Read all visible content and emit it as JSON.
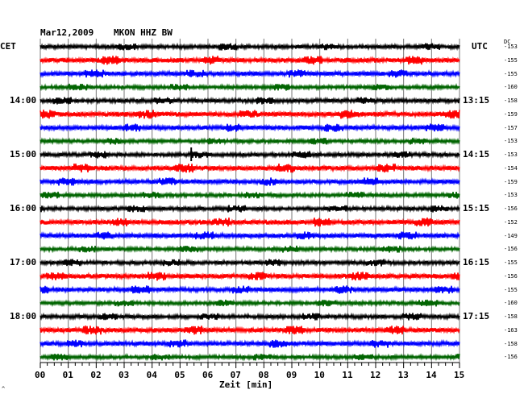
{
  "header": {
    "date": "Mar12,2009",
    "station": "MKON HHZ BW",
    "left_zone": "CET",
    "right_zone": "UTC",
    "dc_label": "DC"
  },
  "footer": {
    "xlabel": "Zeit [min]",
    "corner_mark": "^"
  },
  "colors": {
    "black": "#000000",
    "red": "#ff0000",
    "blue": "#0000ff",
    "green": "#006400",
    "grid": "#777777"
  },
  "chart_data": {
    "type": "line",
    "title": "Mar12,2009 MKON HHZ BW",
    "xlabel": "Zeit [min]",
    "xlim": [
      0,
      15
    ],
    "x_ticks": [
      "00",
      "01",
      "02",
      "03",
      "04",
      "05",
      "06",
      "07",
      "08",
      "09",
      "10",
      "11",
      "12",
      "13",
      "14",
      "15"
    ],
    "trace_color_cycle": [
      "black",
      "red",
      "blue",
      "green"
    ],
    "left_time_labels": [
      {
        "label": "14:00",
        "trace_index": 4
      },
      {
        "label": "15:00",
        "trace_index": 8
      },
      {
        "label": "16:00",
        "trace_index": 12
      },
      {
        "label": "17:00",
        "trace_index": 16
      },
      {
        "label": "18:00",
        "trace_index": 20
      }
    ],
    "right_time_labels": [
      {
        "label": "13:15",
        "trace_index": 4
      },
      {
        "label": "14:15",
        "trace_index": 8
      },
      {
        "label": "15:15",
        "trace_index": 12
      },
      {
        "label": "16:15",
        "trace_index": 16
      },
      {
        "label": "17:15",
        "trace_index": 20
      }
    ],
    "dc_offsets": [
      -153,
      -155,
      -155,
      -160,
      -158,
      -159,
      -157,
      -153,
      -153,
      -154,
      -159,
      -153,
      -156,
      -152,
      -149,
      -156,
      -155,
      -156,
      -155,
      -160,
      -158,
      -163,
      -158,
      -156
    ]
  }
}
